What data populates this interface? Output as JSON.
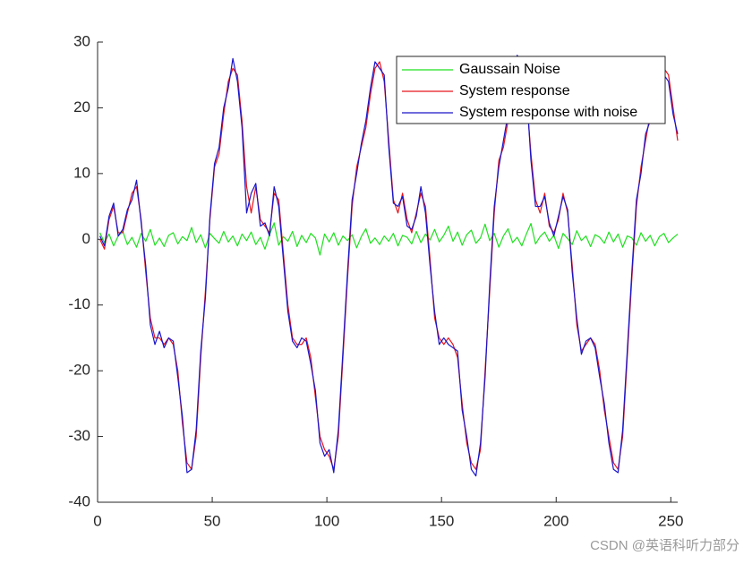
{
  "chart_data": {
    "type": "line",
    "x": [
      1,
      3,
      5,
      7,
      9,
      11,
      13,
      15,
      17,
      19,
      21,
      23,
      25,
      27,
      29,
      31,
      33,
      35,
      37,
      39,
      41,
      43,
      45,
      47,
      49,
      51,
      53,
      55,
      57,
      59,
      61,
      63,
      65,
      67,
      69,
      71,
      73,
      75,
      77,
      79,
      81,
      83,
      85,
      87,
      89,
      91,
      93,
      95,
      97,
      99,
      101,
      103,
      105,
      107,
      109,
      111,
      113,
      115,
      117,
      119,
      121,
      123,
      125,
      127,
      129,
      131,
      133,
      135,
      137,
      139,
      141,
      143,
      145,
      147,
      149,
      151,
      153,
      155,
      157,
      159,
      161,
      163,
      165,
      167,
      169,
      171,
      173,
      175,
      177,
      179,
      181,
      183,
      185,
      187,
      189,
      191,
      193,
      195,
      197,
      199,
      201,
      203,
      205,
      207,
      209,
      211,
      213,
      215,
      217,
      219,
      221,
      223,
      225,
      227,
      229,
      231,
      233,
      235,
      237,
      239,
      241,
      243,
      245,
      247,
      249,
      251,
      253
    ],
    "series": [
      {
        "name": "Gaussain Noise",
        "color": "#1fe01f",
        "values": [
          1,
          -0.5,
          0.8,
          -1,
          0.5,
          1.2,
          -0.8,
          0.3,
          -1.2,
          0.9,
          -0.3,
          1.5,
          -0.9,
          0.2,
          -1.1,
          0.6,
          1,
          -0.7,
          0.4,
          -0.2,
          1.8,
          -0.5,
          0.7,
          -1.3,
          0.9,
          0.1,
          -0.6,
          1.2,
          -0.4,
          0.5,
          -1,
          0.8,
          -0.2,
          1.1,
          -0.8,
          0.3,
          -1.5,
          0.7,
          2.5,
          -0.9,
          0.4,
          -0.3,
          1.2,
          -1.1,
          0.6,
          -0.5,
          0.9,
          0.2,
          -2.4,
          0.8,
          -0.4,
          1,
          -0.9,
          0.5,
          -0.2,
          0.7,
          -1.3,
          0.4,
          1.6,
          -0.6,
          0.2,
          -0.8,
          0.5,
          -0.3,
          0.9,
          -1,
          0.6,
          0.3,
          -0.7,
          1.2,
          -0.5,
          0.8,
          -0.1,
          1.5,
          -0.4,
          0.6,
          2,
          -0.3,
          1.1,
          -0.9,
          0.7,
          1.4,
          -0.6,
          0.2,
          2.3,
          -0.2,
          0.9,
          -1.2,
          0.5,
          1.6,
          -0.5,
          0.3,
          -1,
          0.8,
          2.4,
          -0.7,
          0.4,
          1.1,
          -0.3,
          0.6,
          -1.4,
          0.9,
          0.1,
          -0.8,
          1.3,
          -0.2,
          0.5,
          -1.1,
          0.7,
          0.3,
          -0.6,
          1.1,
          -0.4,
          0.8,
          -1.2,
          0.5,
          0.2,
          -0.9,
          1,
          -0.3,
          0.6,
          -1,
          0.4,
          0.9,
          -0.5,
          0.2,
          0.8
        ]
      },
      {
        "name": "System response",
        "color": "#e8141c",
        "values": [
          0,
          -1.5,
          3,
          5,
          1,
          1,
          4,
          7,
          8,
          3,
          -5,
          -12,
          -15,
          -15,
          -16,
          -15,
          -16,
          -20,
          -28,
          -34,
          -35,
          -30,
          -18,
          -8,
          3,
          11,
          13,
          19,
          24,
          26,
          25,
          18,
          8,
          4,
          8,
          3,
          2,
          1,
          7,
          6,
          -2,
          -10,
          -15,
          -16,
          -16,
          -15,
          -18,
          -24,
          -30,
          -32,
          -33,
          -35,
          -30,
          -18,
          -6,
          5,
          11,
          14,
          17,
          22,
          26,
          27,
          24,
          15,
          6,
          4,
          7,
          3,
          1,
          4,
          7,
          5,
          -3,
          -12,
          -15,
          -16,
          -15,
          -16,
          -18,
          -25,
          -31,
          -34,
          -35,
          -32,
          -20,
          -8,
          4,
          12,
          14,
          18,
          23,
          27,
          27,
          22,
          13,
          6,
          4,
          7,
          2,
          1,
          3,
          7,
          4,
          -4,
          -13,
          -17,
          -16,
          -15,
          -16,
          -20,
          -26,
          -30,
          -34,
          -35,
          -30,
          -18,
          -6,
          5,
          11,
          15,
          19,
          23,
          25,
          26,
          25,
          20,
          15
        ]
      },
      {
        "name": "System response with noise",
        "color": "#1a14c8",
        "values": [
          0.5,
          -1,
          3.5,
          5.5,
          0.5,
          1.5,
          4.5,
          6,
          9,
          2.5,
          -4,
          -13,
          -16,
          -14,
          -16.5,
          -15,
          -15.5,
          -21,
          -27,
          -35.5,
          -35,
          -29,
          -17,
          -9,
          3.5,
          11.5,
          14,
          20,
          23,
          27.5,
          24,
          17,
          4,
          7,
          8.5,
          2,
          2.5,
          0.5,
          8,
          5,
          -3,
          -11,
          -15.5,
          -16.5,
          -15,
          -15.5,
          -19,
          -23,
          -31,
          -33,
          -32,
          -35.5,
          -29,
          -17,
          -5,
          6,
          10,
          14.5,
          18,
          23,
          27,
          26,
          25,
          14,
          5.5,
          5,
          6.5,
          2,
          1.5,
          3.5,
          8,
          4,
          -4,
          -11,
          -16,
          -15,
          -16,
          -16.5,
          -17,
          -26,
          -30,
          -35,
          -36,
          -31,
          -21,
          -7,
          5,
          11,
          15,
          19,
          24,
          28,
          26.5,
          23,
          12,
          5,
          5,
          6.5,
          2.5,
          0.5,
          3.5,
          6.5,
          4.5,
          -5,
          -12,
          -17.5,
          -15.5,
          -15,
          -16.5,
          -21,
          -25,
          -31,
          -35,
          -35.5,
          -29,
          -17,
          -5,
          6,
          10,
          16,
          18,
          24,
          24.5,
          25,
          24,
          19,
          16
        ]
      }
    ],
    "xlim": [
      0,
      253
    ],
    "ylim": [
      -40,
      30
    ],
    "xticks": [
      0,
      50,
      100,
      150,
      200,
      250
    ],
    "yticks": [
      -40,
      -30,
      -20,
      -10,
      0,
      10,
      20,
      30
    ],
    "legend": "northeast",
    "grid": false
  },
  "watermark": "CSDN @英语科听力部分"
}
